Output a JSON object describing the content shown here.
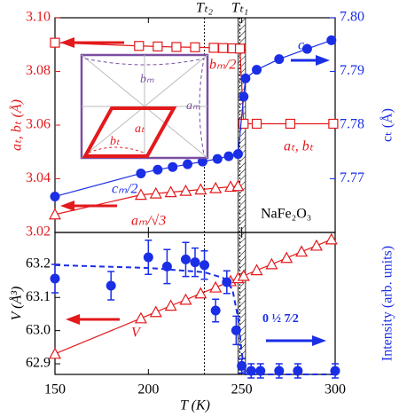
{
  "chart_data": [
    {
      "type": "line",
      "xlim": [
        150,
        300
      ],
      "xticks": [
        150,
        200,
        250,
        300
      ],
      "ylabel": "aₜ, bₜ (Å)",
      "ylim": [
        3.02,
        3.1
      ],
      "yticks": [
        3.02,
        3.04,
        3.06,
        3.08,
        {
          "value": 3.1,
          "label": "3.10"
        }
      ],
      "y2label": "cₜ (Å)",
      "y2lim": [
        7.76,
        7.8
      ],
      "y2ticks": [
        7.77,
        7.78,
        7.79,
        {
          "value": 7.8,
          "label": "7.80"
        }
      ],
      "left_color": "#e3191c",
      "right_color": "#1a2ee6",
      "transitions": [
        {
          "label": "Tₜ₂",
          "value": 230
        },
        {
          "label": "Tₜ₁",
          "value": 249
        }
      ],
      "hatch": [
        248,
        252
      ],
      "series": [
        {
          "color": "#e3191c",
          "marker": "square",
          "x": [
            150,
            195,
            205,
            215,
            225,
            235,
            240,
            245,
            249,
            251,
            258,
            276,
            299
          ],
          "values": [
            3.0907,
            3.0895,
            3.0893,
            3.0891,
            3.089,
            3.0888,
            3.0887,
            3.0886,
            3.0885,
            3.0605,
            3.0605,
            3.0605,
            3.0605
          ]
        },
        {
          "color": "#e3191c",
          "marker": "triangle",
          "x": [
            150,
            196,
            204,
            212,
            220,
            228,
            236,
            244,
            248
          ],
          "values": [
            3.0267,
            3.034,
            3.0345,
            3.035,
            3.0355,
            3.036,
            3.0365,
            3.037,
            3.0373
          ]
        },
        {
          "color": "#1a2ee6",
          "marker": "circle",
          "axis": "y2",
          "x": [
            150,
            196,
            205,
            213,
            221,
            229,
            237,
            243,
            248,
            251,
            252,
            258,
            270,
            285,
            298
          ],
          "values": [
            7.7667,
            7.771,
            7.7717,
            7.7722,
            7.7727,
            7.7732,
            7.7737,
            7.7742,
            7.7746,
            7.7853,
            7.7887,
            7.7903,
            7.7923,
            7.7942,
            7.7958
          ]
        }
      ],
      "annotations": {
        "bm_half": "bₘ/2",
        "ct": "cₜ",
        "at_bt": "aₜ, bₜ",
        "cm_half": "cₘ/2",
        "am_sqrt3": "aₘ/√3",
        "formula": "NaFe₂O₃",
        "inset_bm": "bₘ",
        "inset_am": "aₘ",
        "inset_at": "aₜ",
        "inset_bt": "bₜ"
      }
    },
    {
      "type": "line",
      "xlabel": "T (K)",
      "xlim": [
        150,
        300
      ],
      "xticks": [
        150,
        200,
        250,
        300
      ],
      "ylabel": "V (Å³)",
      "ylim": [
        62.868,
        63.296
      ],
      "yticks": [
        62.9,
        {
          "value": 63.0,
          "label": "63.0"
        },
        63.1,
        63.2
      ],
      "y2label": "Intensity (arb. units)",
      "y2lim": [
        0,
        1
      ],
      "left_color": "#000000",
      "right_color": "#1a2ee6",
      "series": [
        {
          "color": "#e3191c",
          "marker": "triangle",
          "x": [
            150,
            196,
            204,
            212,
            220,
            228,
            236,
            244,
            248,
            251,
            258,
            266,
            274,
            282,
            290,
            298
          ],
          "values": [
            62.93,
            63.037,
            63.056,
            63.075,
            63.093,
            63.112,
            63.13,
            63.149,
            63.158,
            63.165,
            63.182,
            63.2,
            63.219,
            63.238,
            63.256,
            63.275
          ]
        },
        {
          "color": "#1a2ee6",
          "marker": "circle",
          "axis": "y2",
          "line": false,
          "x": [
            150,
            180,
            200,
            210,
            220,
            225,
            230,
            236,
            242,
            247,
            250,
            255,
            260,
            270,
            280,
            300
          ],
          "values": [
            0.675,
            0.625,
            0.825,
            0.76,
            0.81,
            0.79,
            0.77,
            0.45,
            0.65,
            0.31,
            0.06,
            0.025,
            0.025,
            0.025,
            0.025,
            0.025
          ],
          "errors": [
            0.1,
            0.1,
            0.12,
            0.12,
            0.12,
            0.1,
            0.1,
            0.08,
            0.08,
            0.1,
            0.05,
            0.05,
            0.05,
            0.05,
            0.05,
            0.05
          ]
        },
        {
          "color": "#1a2ee6",
          "marker": "none",
          "axis": "y2",
          "dashed": true,
          "x": [
            150,
            200,
            230,
            240,
            245,
            248,
            250,
            252,
            300
          ],
          "values": [
            0.77,
            0.75,
            0.72,
            0.68,
            0.6,
            0.4,
            0.15,
            0,
            0
          ]
        }
      ],
      "annotations": {
        "v": "V",
        "reflection": "0 ½ 7⁄2"
      }
    }
  ]
}
